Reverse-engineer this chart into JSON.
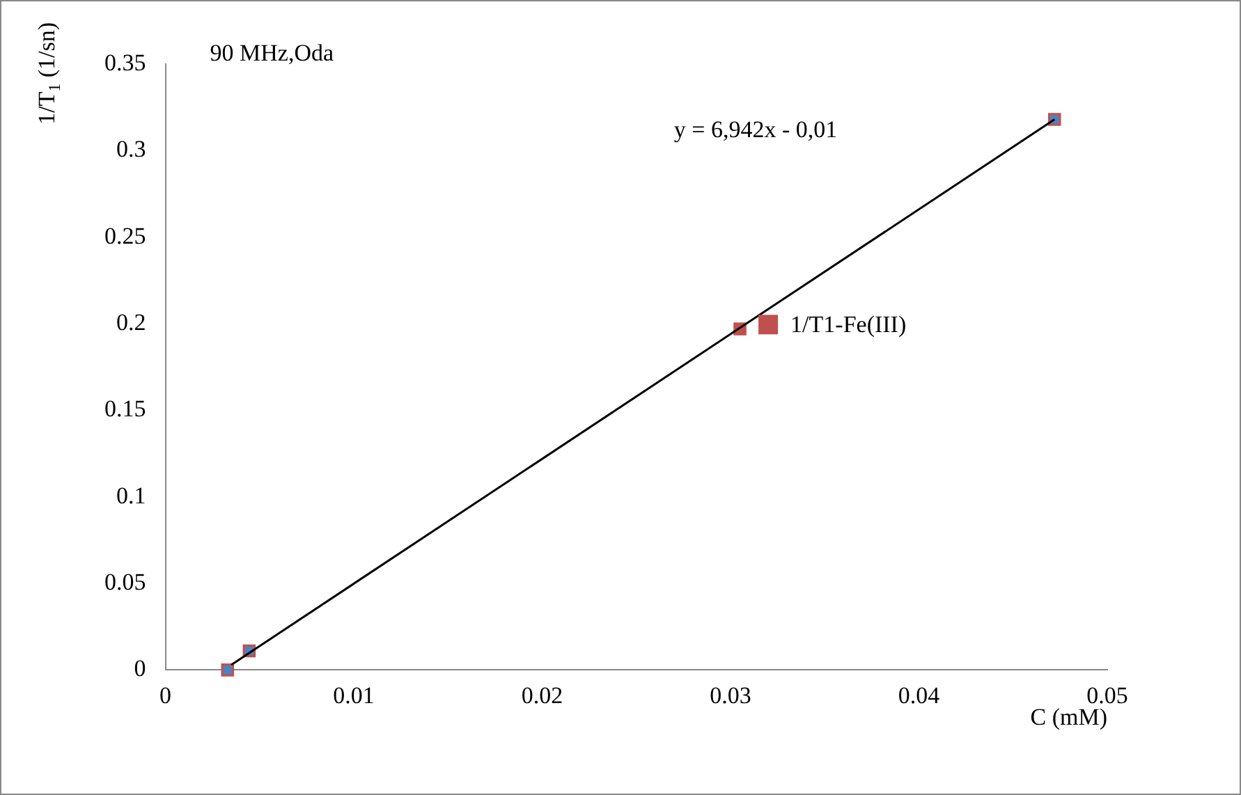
{
  "chart_data": {
    "type": "scatter",
    "xlabel": "C (mM)",
    "ylabel": "1/T$_{1}$ (1/sn)",
    "xlim": [
      0,
      0.05
    ],
    "xticks": [
      0,
      0.01,
      0.02,
      0.03,
      0.04,
      0.05
    ],
    "ylim": [
      0,
      0.35
    ],
    "yticks": [
      0,
      0.05,
      0.1,
      0.15,
      0.2,
      0.25,
      0.3,
      0.35
    ],
    "grid": false,
    "legend": "right",
    "marker": "square",
    "annotations": [
      "90 MHz,Oda",
      "y = 6,942x - 0,01"
    ],
    "series": [
      {
        "name": "1/T1-Fe(III)",
        "color": "#c0504d",
        "colors": [
          "#4f81bd",
          "#4f81bd",
          "#c0504d",
          "#4f81bd"
        ],
        "x": [
          0.0033,
          0.00445,
          0.0305,
          0.0472
        ],
        "values": [
          0,
          0.011,
          0.197,
          0.318
        ]
      },
      {
        "type": "line",
        "color": "#000000",
        "marker": "none",
        "x": [
          0.0035,
          0.0472
        ],
        "values": [
          0.003,
          0.318
        ]
      }
    ]
  }
}
